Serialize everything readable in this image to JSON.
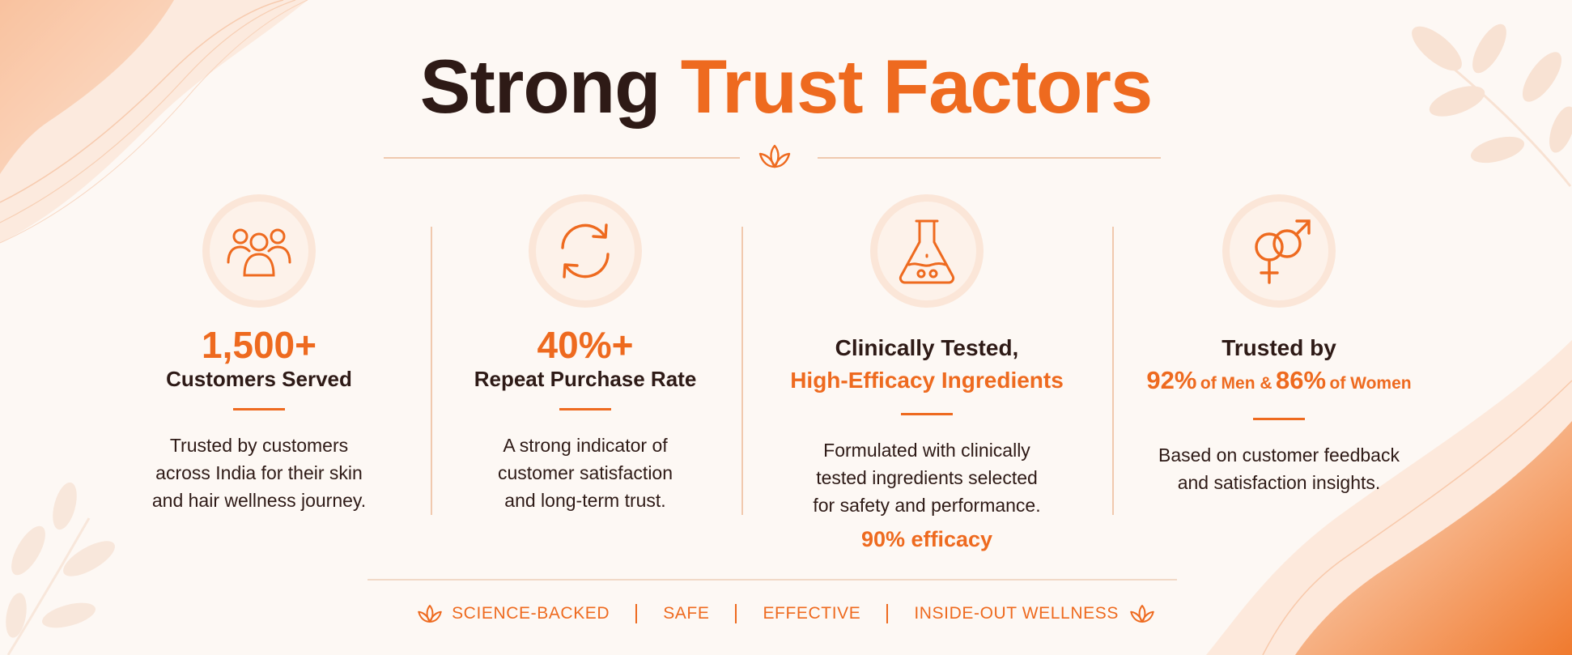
{
  "header": {
    "title_part1": "Strong",
    "title_part2": "Trust Factors"
  },
  "colors": {
    "accent": "#ee6a1f",
    "dark": "#2e1a16",
    "soft": "#fbe6d8"
  },
  "columns": [
    {
      "icon": "people-group-icon",
      "stat": "1,500+",
      "label": "Customers Served",
      "description": [
        "Trusted by customers",
        "across India for their skin",
        "and hair wellness journey."
      ]
    },
    {
      "icon": "refresh-cycle-icon",
      "stat": "40%+",
      "label": "Repeat Purchase Rate",
      "description": [
        "A strong indicator of",
        "customer satisfaction",
        "and long-term trust."
      ]
    },
    {
      "icon": "lab-flask-icon",
      "title": "Clinically Tested,",
      "subtitle": "High-Efficacy Ingredients",
      "description": [
        "Formulated with clinically",
        "tested ingredients selected",
        "for safety and performance."
      ],
      "highlight": "90% efficacy"
    },
    {
      "icon": "gender-symbols-icon",
      "title": "Trusted by",
      "men_pct": "92%",
      "men_text": "of Men &",
      "women_pct": "86%",
      "women_text": "of Women",
      "description": [
        "Based on customer feedback",
        "and satisfaction insights."
      ]
    }
  ],
  "footer": {
    "icon": "lotus-icon",
    "items": [
      "SCIENCE-BACKED",
      "SAFE",
      "EFFECTIVE",
      "INSIDE-OUT WELLNESS"
    ]
  }
}
